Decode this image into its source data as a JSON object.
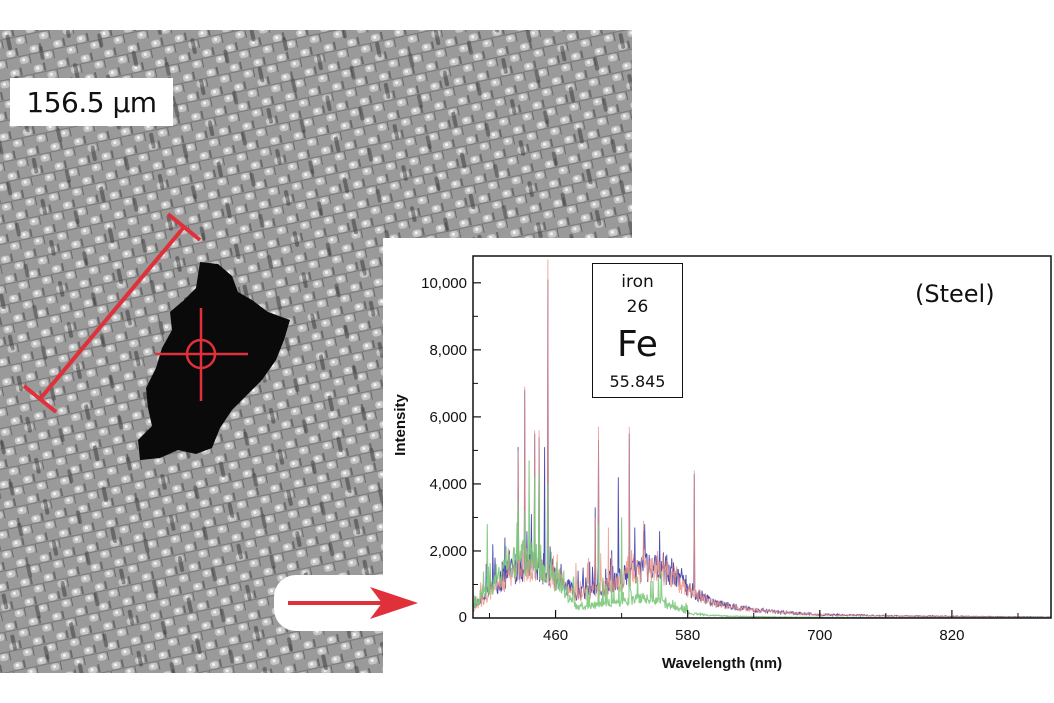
{
  "scale_bar_label": "156.5 µm",
  "element_tile": {
    "name": "iron",
    "atomic_number": "26",
    "symbol": "Fe",
    "atomic_weight": "55.845"
  },
  "sample_label": "(Steel)",
  "colors": {
    "red": "#e8323c",
    "blue": "#3a3aa8",
    "green": "#7cc87c",
    "salmon": "#e89080"
  },
  "chart_data": {
    "type": "line",
    "title": "",
    "xlabel": "Wavelength (nm)",
    "ylabel": "Intensity",
    "xlim": [
      385,
      910
    ],
    "ylim": [
      0,
      10800
    ],
    "x_ticks": [
      460,
      580,
      700,
      820
    ],
    "y_ticks": [
      2000,
      4000,
      6000,
      8000,
      10000
    ],
    "x_tick_labels": [
      "460",
      "580",
      "700",
      "820"
    ],
    "y_tick_labels": [
      "2,000",
      "4,000",
      "6,000",
      "8,000",
      "10,000"
    ],
    "origin_label": "0",
    "baseline_x": [
      385,
      400,
      420,
      440,
      460,
      480,
      500,
      520,
      540,
      560,
      580,
      600,
      620,
      640,
      660,
      680,
      700,
      740,
      780,
      820,
      860,
      910
    ],
    "series": [
      {
        "color": "#3a3aa8",
        "baseline_y": [
          300,
          800,
          1400,
          1600,
          1200,
          700,
          900,
          1200,
          1500,
          1400,
          900,
          500,
          350,
          250,
          180,
          140,
          100,
          80,
          60,
          50,
          40,
          30
        ],
        "peaks": [
          [
            403,
            2200
          ],
          [
            405,
            1800
          ],
          [
            414,
            2400
          ],
          [
            426,
            5100
          ],
          [
            432,
            6800
          ],
          [
            438,
            3100
          ],
          [
            441,
            5500
          ],
          [
            445,
            5400
          ],
          [
            450,
            5100
          ],
          [
            453,
            10100
          ],
          [
            496,
            3300
          ],
          [
            499,
            5300
          ],
          [
            517,
            4200
          ],
          [
            527,
            5500
          ],
          [
            532,
            2700
          ],
          [
            540,
            2600
          ],
          [
            541,
            2800
          ],
          [
            549,
            1400
          ],
          [
            556,
            1700
          ],
          [
            586,
            4300
          ]
        ]
      },
      {
        "color": "#e89080",
        "baseline_y": [
          250,
          700,
          1300,
          1500,
          1100,
          650,
          850,
          1150,
          1450,
          1350,
          850,
          480,
          330,
          240,
          170,
          130,
          95,
          75,
          55,
          45,
          35,
          25
        ],
        "peaks": [
          [
            426,
            5000
          ],
          [
            432,
            6900
          ],
          [
            441,
            5600
          ],
          [
            445,
            5600
          ],
          [
            453,
            10700
          ],
          [
            496,
            3000
          ],
          [
            499,
            5700
          ],
          [
            508,
            2700
          ],
          [
            527,
            5700
          ],
          [
            540,
            2900
          ],
          [
            586,
            4400
          ]
        ]
      },
      {
        "color": "#7cc87c",
        "baseline_y": [
          300,
          900,
          1600,
          1800,
          1000,
          300,
          400,
          500,
          600,
          400,
          150,
          80,
          50,
          40,
          30,
          25,
          20,
          15,
          10,
          10,
          10,
          10
        ],
        "peaks": [
          [
            398,
            2800
          ],
          [
            426,
            3500
          ],
          [
            432,
            3200
          ],
          [
            436,
            4700
          ],
          [
            441,
            4200
          ],
          [
            445,
            4300
          ],
          [
            453,
            4000
          ],
          [
            499,
            2800
          ],
          [
            520,
            3000
          ],
          [
            556,
            1400
          ]
        ]
      }
    ]
  }
}
